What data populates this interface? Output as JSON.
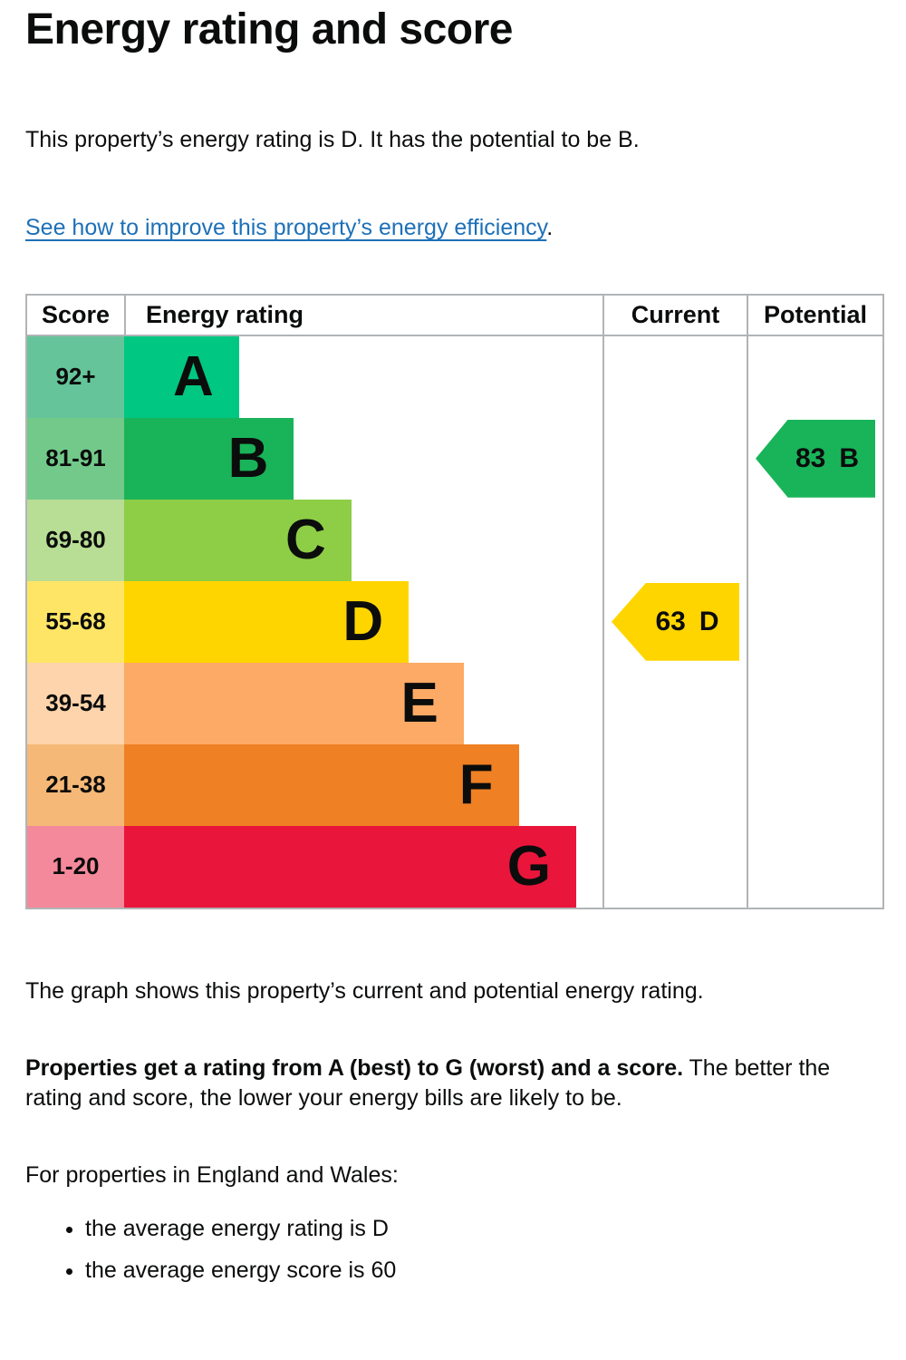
{
  "page": {
    "title": "Energy rating and score",
    "intro": "This property’s energy rating is D. It has the potential to be B.",
    "improve_link": "See how to improve this property’s energy efficiency",
    "improve_link_suffix": ".",
    "graph_caption": "The graph shows this property’s current and potential energy rating.",
    "explain_bold": "Properties get a rating from A (best) to G (worst) and a score.",
    "explain_rest": " The better the rating and score, the lower your energy bills are likely to be.",
    "region_heading": "For properties in England and Wales:",
    "bullets": [
      "the average energy rating is D",
      "the average energy score is 60"
    ]
  },
  "chart": {
    "headers": {
      "score": "Score",
      "rating": "Energy rating",
      "current": "Current",
      "potential": "Potential"
    },
    "bands": [
      {
        "range": "92+",
        "letter": "A",
        "color": "#00c781",
        "tint": "#66c49a",
        "bar_width": "24%"
      },
      {
        "range": "81-91",
        "letter": "B",
        "color": "#19b459",
        "tint": "#72c98a",
        "bar_width": "35.5%"
      },
      {
        "range": "69-80",
        "letter": "C",
        "color": "#8dce46",
        "tint": "#b8dd94",
        "bar_width": "47.5%"
      },
      {
        "range": "55-68",
        "letter": "D",
        "color": "#ffd500",
        "tint": "#ffe566",
        "bar_width": "59.5%"
      },
      {
        "range": "39-54",
        "letter": "E",
        "color": "#fcaa65",
        "tint": "#fdd4ab",
        "bar_width": "71%"
      },
      {
        "range": "21-38",
        "letter": "F",
        "color": "#ef8023",
        "tint": "#f5b877",
        "bar_width": "82.5%"
      },
      {
        "range": "1-20",
        "letter": "G",
        "color": "#e9153b",
        "tint": "#f4899b",
        "bar_width": "94.5%"
      }
    ],
    "current": {
      "score": "63",
      "band": "D",
      "color": "#ffd500"
    },
    "potential": {
      "score": "83",
      "band": "B",
      "color": "#19b459"
    }
  },
  "chart_data": {
    "type": "bar",
    "title": "Energy rating and score",
    "columns": [
      "Score",
      "Energy rating",
      "Current",
      "Potential"
    ],
    "categories": [
      "A",
      "B",
      "C",
      "D",
      "E",
      "F",
      "G"
    ],
    "score_ranges": [
      "92+",
      "81-91",
      "69-80",
      "55-68",
      "39-54",
      "21-38",
      "1-20"
    ],
    "band_colors": [
      "#00c781",
      "#19b459",
      "#8dce46",
      "#ffd500",
      "#fcaa65",
      "#ef8023",
      "#e9153b"
    ],
    "current": {
      "score": 63,
      "rating": "D"
    },
    "potential": {
      "score": 83,
      "rating": "B"
    },
    "notes": "Bar length increases from A (shortest) to G (longest); current and potential markers are left-pointing arrows in their own columns aligned to band rows D and B."
  }
}
